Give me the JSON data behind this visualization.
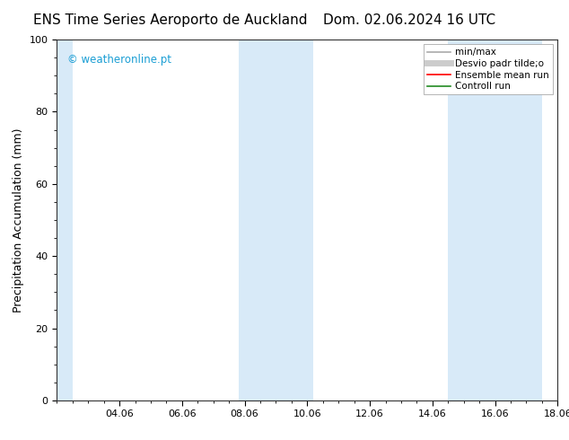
{
  "title_left": "ENS Time Series Aeroporto de Auckland",
  "title_right": "Dom. 02.06.2024 16 UTC",
  "ylabel": "Precipitation Accumulation (mm)",
  "ylim": [
    0,
    100
  ],
  "yticks": [
    0,
    20,
    40,
    60,
    80,
    100
  ],
  "xlim": [
    0.0,
    16.0
  ],
  "xtick_labels": [
    "04.06",
    "06.06",
    "08.06",
    "10.06",
    "12.06",
    "14.06",
    "16.06",
    "18.06"
  ],
  "xtick_positions": [
    2.0,
    4.0,
    6.0,
    8.0,
    10.0,
    12.0,
    14.0,
    16.0
  ],
  "shade_bands": [
    {
      "xmin": 0.0,
      "xmax": 0.5
    },
    {
      "xmin": 5.8,
      "xmax": 8.2
    },
    {
      "xmin": 12.5,
      "xmax": 15.5
    }
  ],
  "shade_color": "#d8eaf8",
  "watermark": "© weatheronline.pt",
  "watermark_color": "#1a9ed4",
  "legend_items": [
    {
      "label": "min/max",
      "color": "#aaaaaa",
      "lw": 1.2
    },
    {
      "label": "Desvio padr tilde;o",
      "color": "#cccccc",
      "lw": 5
    },
    {
      "label": "Ensemble mean run",
      "color": "#ff0000",
      "lw": 1.2
    },
    {
      "label": "Controll run",
      "color": "#228b22",
      "lw": 1.2
    }
  ],
  "background_color": "#ffffff",
  "title_fontsize": 11,
  "axis_label_fontsize": 9,
  "tick_fontsize": 8,
  "legend_fontsize": 7.5
}
